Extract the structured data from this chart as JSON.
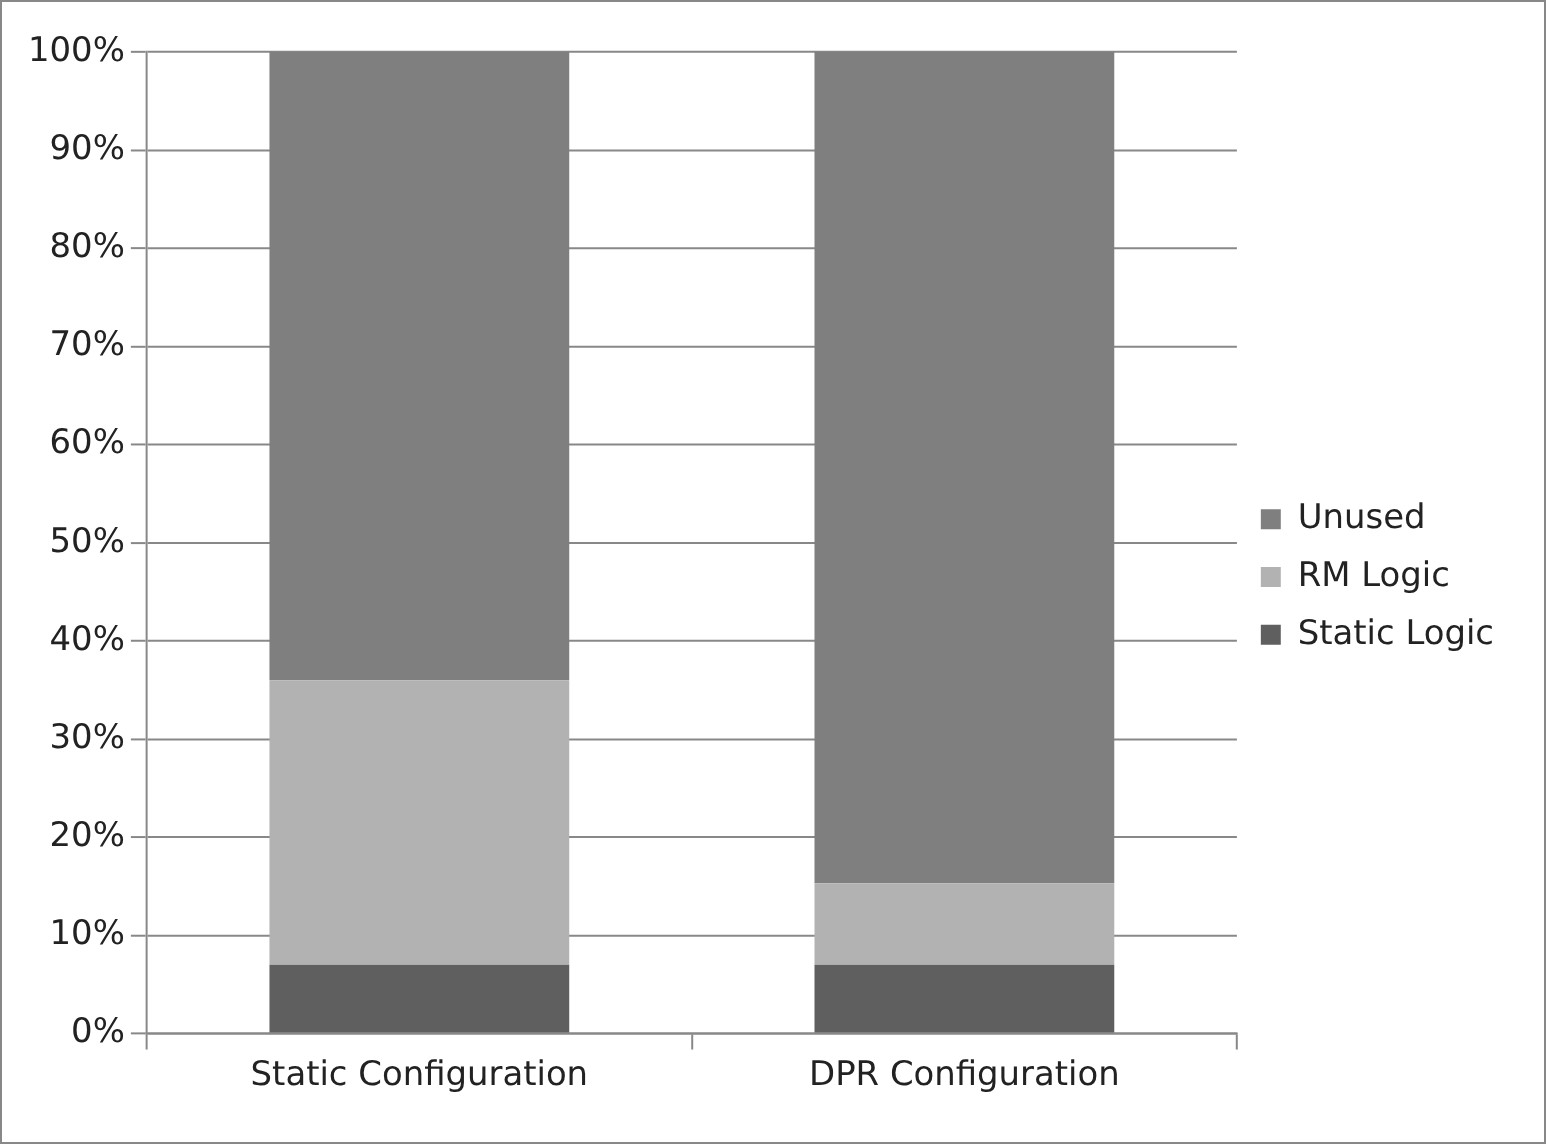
{
  "chart_data": {
    "type": "bar",
    "stacked": true,
    "categories": [
      "Static Configuration",
      "DPR Configuration"
    ],
    "series": [
      {
        "name": "Static Logic",
        "color": "#5f5f5f",
        "values": [
          7,
          7
        ]
      },
      {
        "name": "RM Logic",
        "color": "#b2b2b2",
        "values": [
          29,
          8.3
        ]
      },
      {
        "name": "Unused",
        "color": "#7f7f7f",
        "values": [
          64,
          84.7
        ]
      }
    ],
    "ylim": [
      0,
      100
    ],
    "yticks": [
      {
        "value": 0,
        "label": "0%"
      },
      {
        "value": 10,
        "label": "10%"
      },
      {
        "value": 20,
        "label": "20%"
      },
      {
        "value": 30,
        "label": "30%"
      },
      {
        "value": 40,
        "label": "40%"
      },
      {
        "value": 50,
        "label": "50%"
      },
      {
        "value": 60,
        "label": "60%"
      },
      {
        "value": 70,
        "label": "70%"
      },
      {
        "value": 80,
        "label": "80%"
      },
      {
        "value": 90,
        "label": "90%"
      },
      {
        "value": 100,
        "label": "100%"
      }
    ],
    "grid": "y",
    "legend": "right"
  }
}
